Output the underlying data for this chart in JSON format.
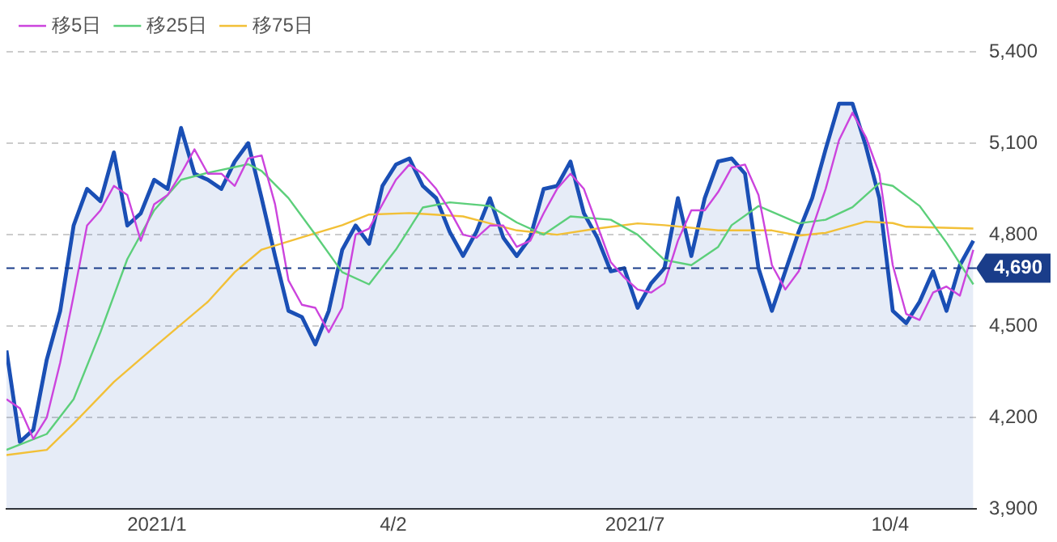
{
  "chart_data": {
    "type": "line",
    "legend": "top left",
    "grid": "y",
    "marker": "none",
    "xlim": [
      "2020-11-09",
      "2021-11-05"
    ],
    "xticks": [
      {
        "value": "2021-01-04",
        "label": "2021/1"
      },
      {
        "value": "2021-04-02",
        "label": "4/2"
      },
      {
        "value": "2021-07-01",
        "label": "2021/7"
      },
      {
        "value": "2021-10-04",
        "label": "10/4"
      }
    ],
    "ylim": [
      3900,
      5400
    ],
    "yticks": [
      {
        "value": 3900,
        "label": "3,900"
      },
      {
        "value": 4200,
        "label": "4,200"
      },
      {
        "value": 4500,
        "label": "4,500"
      },
      {
        "value": 4800,
        "label": "4,800"
      },
      {
        "value": 5100,
        "label": "5,100"
      },
      {
        "value": 5400,
        "label": "5,400"
      }
    ],
    "ref_lines": [
      {
        "axis": "y",
        "value": 4690,
        "label": "4,690",
        "color": "#1a3d8a",
        "line_style": "dashed"
      }
    ],
    "series": [
      {
        "type": "area",
        "color": "#1a4fb5",
        "x": [
          "2020-11-09",
          "2020-11-14",
          "2020-11-19",
          "2020-11-24",
          "2020-11-29",
          "2020-12-04",
          "2020-12-09",
          "2020-12-14",
          "2020-12-19",
          "2020-12-24",
          "2020-12-29",
          "2021-01-03",
          "2021-01-08",
          "2021-01-13",
          "2021-01-18",
          "2021-01-23",
          "2021-01-28",
          "2021-02-02",
          "2021-02-07",
          "2021-02-12",
          "2021-02-17",
          "2021-02-22",
          "2021-02-27",
          "2021-03-04",
          "2021-03-09",
          "2021-03-14",
          "2021-03-19",
          "2021-03-24",
          "2021-03-29",
          "2021-04-03",
          "2021-04-08",
          "2021-04-13",
          "2021-04-18",
          "2021-04-23",
          "2021-04-28",
          "2021-05-03",
          "2021-05-08",
          "2021-05-13",
          "2021-05-18",
          "2021-05-23",
          "2021-05-28",
          "2021-06-02",
          "2021-06-07",
          "2021-06-12",
          "2021-06-17",
          "2021-06-22",
          "2021-06-27",
          "2021-07-02",
          "2021-07-07",
          "2021-07-12",
          "2021-07-17",
          "2021-07-22",
          "2021-07-27",
          "2021-08-01",
          "2021-08-06",
          "2021-08-11",
          "2021-08-16",
          "2021-08-21",
          "2021-08-26",
          "2021-08-31",
          "2021-09-05",
          "2021-09-10",
          "2021-09-15",
          "2021-09-20",
          "2021-09-25",
          "2021-09-30",
          "2021-10-05",
          "2021-10-10",
          "2021-10-15",
          "2021-10-20",
          "2021-10-25",
          "2021-10-30",
          "2021-11-04"
        ],
        "values": [
          4420,
          4120,
          4160,
          4390,
          4550,
          4830,
          4950,
          4910,
          5070,
          4830,
          4870,
          4980,
          4950,
          5150,
          5000,
          4980,
          4950,
          5040,
          5100,
          4920,
          4730,
          4550,
          4530,
          4440,
          4550,
          4750,
          4830,
          4770,
          4960,
          5030,
          5050,
          4960,
          4920,
          4810,
          4730,
          4810,
          4920,
          4790,
          4730,
          4790,
          4950,
          4960,
          5040,
          4870,
          4790,
          4680,
          4690,
          4560,
          4640,
          4690,
          4920,
          4730,
          4920,
          5040,
          5050,
          5000,
          4690,
          4550,
          4680,
          4810,
          4920,
          5080,
          5230,
          5230,
          5090,
          4920,
          4550,
          4510,
          4580,
          4680,
          4550,
          4700,
          4780
        ]
      },
      {
        "name": "移5日",
        "color": "#cc44dd",
        "x": [
          "2020-11-09",
          "2020-11-14",
          "2020-11-19",
          "2020-11-24",
          "2020-11-29",
          "2020-12-04",
          "2020-12-09",
          "2020-12-14",
          "2020-12-19",
          "2020-12-24",
          "2020-12-29",
          "2021-01-03",
          "2021-01-08",
          "2021-01-13",
          "2021-01-18",
          "2021-01-23",
          "2021-01-28",
          "2021-02-02",
          "2021-02-07",
          "2021-02-12",
          "2021-02-17",
          "2021-02-22",
          "2021-02-27",
          "2021-03-04",
          "2021-03-09",
          "2021-03-14",
          "2021-03-19",
          "2021-03-24",
          "2021-03-29",
          "2021-04-03",
          "2021-04-08",
          "2021-04-13",
          "2021-04-18",
          "2021-04-23",
          "2021-04-28",
          "2021-05-03",
          "2021-05-08",
          "2021-05-13",
          "2021-05-18",
          "2021-05-23",
          "2021-05-28",
          "2021-06-02",
          "2021-06-07",
          "2021-06-12",
          "2021-06-17",
          "2021-06-22",
          "2021-06-27",
          "2021-07-02",
          "2021-07-07",
          "2021-07-12",
          "2021-07-17",
          "2021-07-22",
          "2021-07-27",
          "2021-08-01",
          "2021-08-06",
          "2021-08-11",
          "2021-08-16",
          "2021-08-21",
          "2021-08-26",
          "2021-08-31",
          "2021-09-05",
          "2021-09-10",
          "2021-09-15",
          "2021-09-20",
          "2021-09-25",
          "2021-09-30",
          "2021-10-05",
          "2021-10-10",
          "2021-10-15",
          "2021-10-20",
          "2021-10-25",
          "2021-10-30",
          "2021-11-04"
        ],
        "values": [
          4260,
          4230,
          4130,
          4200,
          4380,
          4600,
          4830,
          4880,
          4960,
          4930,
          4780,
          4900,
          4930,
          5000,
          5080,
          5000,
          5000,
          4960,
          5050,
          5060,
          4900,
          4650,
          4570,
          4560,
          4480,
          4560,
          4800,
          4820,
          4900,
          4980,
          5030,
          5000,
          4950,
          4880,
          4800,
          4790,
          4830,
          4830,
          4760,
          4780,
          4870,
          4950,
          5000,
          4950,
          4830,
          4710,
          4660,
          4620,
          4610,
          4640,
          4780,
          4880,
          4880,
          4940,
          5020,
          5030,
          4930,
          4700,
          4620,
          4680,
          4820,
          4950,
          5110,
          5200,
          5120,
          5000,
          4700,
          4540,
          4520,
          4610,
          4630,
          4600,
          4750
        ]
      },
      {
        "name": "移25日",
        "color": "#5ccf7a",
        "x": [
          "2020-11-09",
          "2020-11-24",
          "2020-12-04",
          "2020-12-14",
          "2020-12-24",
          "2021-01-03",
          "2021-01-13",
          "2021-01-23",
          "2021-02-07",
          "2021-02-12",
          "2021-02-22",
          "2021-03-04",
          "2021-03-14",
          "2021-03-24",
          "2021-04-03",
          "2021-04-13",
          "2021-04-23",
          "2021-05-08",
          "2021-05-18",
          "2021-05-28",
          "2021-06-07",
          "2021-06-22",
          "2021-07-02",
          "2021-07-12",
          "2021-07-22",
          "2021-08-01",
          "2021-08-06",
          "2021-08-16",
          "2021-08-31",
          "2021-09-10",
          "2021-09-20",
          "2021-09-30",
          "2021-10-05",
          "2021-10-15",
          "2021-10-25",
          "2021-11-04"
        ],
        "values": [
          4094,
          4146,
          4260,
          4480,
          4720,
          4880,
          4980,
          5003,
          5031,
          5009,
          4920,
          4800,
          4677,
          4637,
          4751,
          4889,
          4906,
          4894,
          4840,
          4800,
          4860,
          4849,
          4800,
          4717,
          4700,
          4760,
          4831,
          4894,
          4837,
          4849,
          4890,
          4969,
          4960,
          4894,
          4774,
          4637
        ]
      },
      {
        "name": "移75日",
        "color": "#f2c037",
        "x": [
          "2020-11-09",
          "2020-11-24",
          "2020-12-04",
          "2020-12-19",
          "2021-01-03",
          "2021-01-23",
          "2021-02-02",
          "2021-02-12",
          "2021-02-27",
          "2021-03-14",
          "2021-03-24",
          "2021-04-08",
          "2021-04-28",
          "2021-05-08",
          "2021-05-18",
          "2021-06-02",
          "2021-06-17",
          "2021-07-02",
          "2021-07-12",
          "2021-08-01",
          "2021-08-21",
          "2021-08-31",
          "2021-09-10",
          "2021-09-25",
          "2021-10-05",
          "2021-10-10",
          "2021-11-04"
        ],
        "values": [
          4077,
          4094,
          4180,
          4317,
          4431,
          4580,
          4677,
          4751,
          4791,
          4831,
          4866,
          4871,
          4860,
          4837,
          4814,
          4800,
          4820,
          4837,
          4831,
          4814,
          4814,
          4797,
          4806,
          4843,
          4838,
          4826,
          4820
        ]
      }
    ]
  }
}
